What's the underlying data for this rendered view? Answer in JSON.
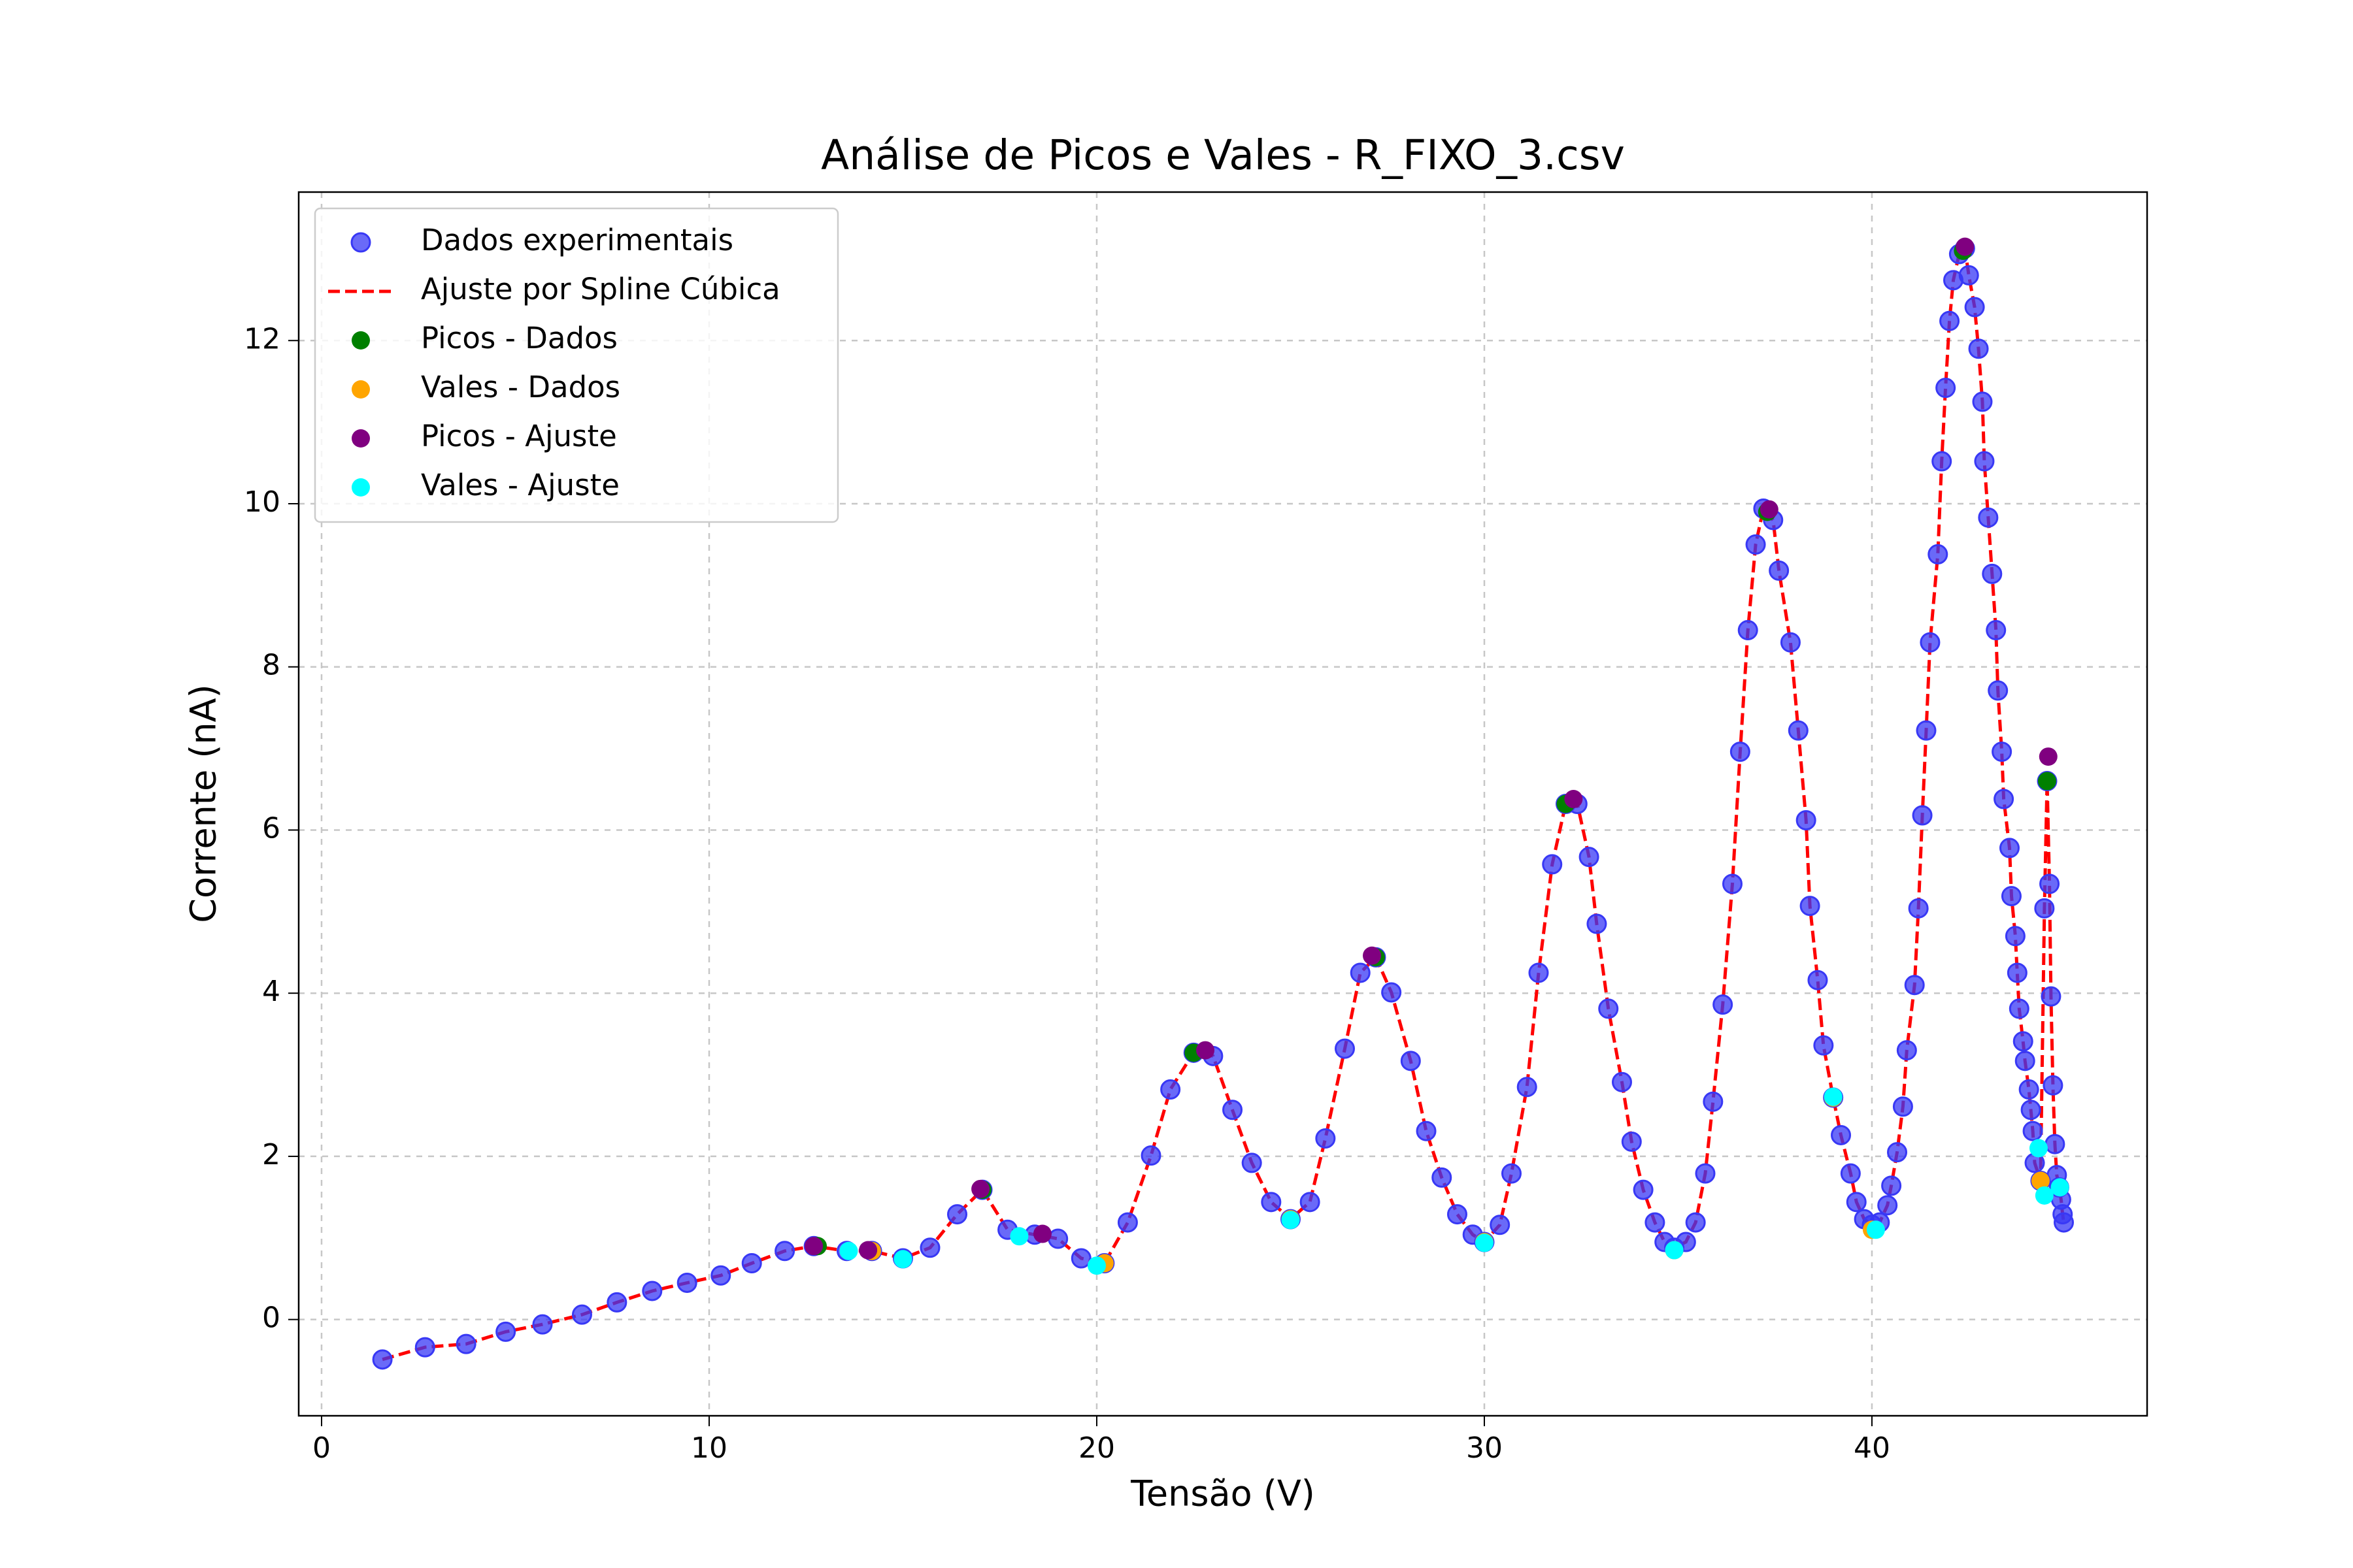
{
  "chart_data": {
    "type": "scatter",
    "title": "Análise de Picos e Vales - R_FIXO_3.csv",
    "xlabel": "Tensão (V)",
    "ylabel": "Corrente (nA)",
    "xlim": [
      -0.59,
      47.1
    ],
    "ylim": [
      -1.18,
      13.82
    ],
    "xticks": [
      0,
      10,
      20,
      30,
      40
    ],
    "yticks": [
      0,
      2,
      4,
      6,
      8,
      10,
      12
    ],
    "grid": true,
    "legend": "upper left",
    "series": [
      {
        "name": "Dados experimentais",
        "type": "scatter",
        "color": "#3838f5",
        "x": [
          1.57,
          2.67,
          3.73,
          4.75,
          5.7,
          6.72,
          7.62,
          8.53,
          9.43,
          10.3,
          11.1,
          11.95,
          12.7,
          13.55,
          14.2,
          15.0,
          15.7,
          16.4,
          17.05,
          17.7,
          18.4,
          19.0,
          19.6,
          20.2,
          20.8,
          21.4,
          21.9,
          22.5,
          23.0,
          23.5,
          24.0,
          24.5,
          25.0,
          25.5,
          25.9,
          26.4,
          26.8,
          27.2,
          27.6,
          28.1,
          28.5,
          28.9,
          29.3,
          29.7,
          30.0,
          30.4,
          30.7,
          31.1,
          31.4,
          31.75,
          32.1,
          32.4,
          32.7,
          32.9,
          33.2,
          33.55,
          33.8,
          34.1,
          34.4,
          34.65,
          34.9,
          35.2,
          35.45,
          35.7,
          35.9,
          36.15,
          36.4,
          36.6,
          36.8,
          37.0,
          37.2,
          37.45,
          37.6,
          37.9,
          38.1,
          38.3,
          38.4,
          38.6,
          38.75,
          39.0,
          39.2,
          39.45,
          39.6,
          39.8,
          40.0,
          40.2,
          40.4,
          40.5,
          40.65,
          40.8,
          40.9,
          41.1,
          41.2,
          41.3,
          41.4,
          41.5,
          41.7,
          41.8,
          41.9,
          42.0,
          42.1,
          42.25,
          42.4,
          42.5,
          42.65,
          42.75,
          42.85,
          42.9,
          43.0,
          43.1,
          43.2,
          43.25,
          43.35,
          43.4,
          43.55,
          43.6,
          43.7,
          43.75,
          43.8,
          43.9,
          43.95,
          44.05,
          44.1,
          44.15,
          44.2,
          44.35,
          44.45,
          44.52,
          44.58,
          44.62,
          44.67,
          44.72,
          44.77,
          44.83,
          44.88,
          44.92,
          44.95
        ],
        "values": [
          -0.49,
          -0.34,
          -0.3,
          -0.15,
          -0.06,
          0.06,
          0.21,
          0.35,
          0.45,
          0.54,
          0.69,
          0.84,
          0.9,
          0.84,
          0.84,
          0.75,
          0.88,
          1.29,
          1.59,
          1.1,
          1.04,
          0.99,
          0.75,
          0.69,
          1.19,
          2.01,
          2.82,
          3.27,
          3.23,
          2.57,
          1.92,
          1.44,
          1.23,
          1.44,
          2.22,
          3.32,
          4.25,
          4.44,
          4.01,
          3.17,
          2.31,
          1.74,
          1.29,
          1.04,
          0.95,
          1.16,
          1.79,
          2.85,
          4.25,
          5.58,
          6.32,
          6.32,
          5.67,
          4.85,
          3.81,
          2.91,
          2.18,
          1.59,
          1.19,
          0.95,
          0.88,
          0.95,
          1.19,
          1.79,
          2.67,
          3.86,
          5.34,
          6.96,
          8.45,
          9.5,
          9.94,
          9.8,
          9.18,
          8.3,
          7.22,
          6.12,
          5.07,
          4.16,
          3.36,
          2.72,
          2.26,
          1.79,
          1.44,
          1.23,
          1.16,
          1.19,
          1.4,
          1.64,
          2.05,
          2.61,
          3.3,
          4.1,
          5.04,
          6.18,
          7.22,
          8.3,
          9.38,
          10.52,
          11.42,
          12.24,
          12.74,
          13.06,
          13.13,
          12.8,
          12.41,
          11.9,
          11.25,
          10.52,
          9.83,
          9.14,
          8.45,
          7.71,
          6.96,
          6.38,
          5.78,
          5.19,
          4.7,
          4.25,
          3.81,
          3.41,
          3.17,
          2.82,
          2.57,
          2.31,
          1.92,
          1.7,
          5.04,
          6.6,
          5.34,
          3.96,
          2.87,
          2.15,
          1.77,
          1.62,
          1.47,
          1.29,
          1.19
        ]
      },
      {
        "name": "Ajuste por Spline Cúbica",
        "type": "line",
        "color": "#ff0000",
        "x": [
          1.57,
          2.67,
          3.73,
          4.75,
          5.7,
          6.72,
          7.62,
          8.53,
          9.43,
          10.3,
          11.1,
          11.95,
          12.7,
          13.55,
          14.2,
          15.0,
          15.7,
          16.4,
          17.05,
          17.7,
          18.4,
          19.0,
          19.6,
          20.2,
          20.8,
          21.4,
          21.9,
          22.5,
          23.0,
          23.5,
          24.0,
          24.5,
          25.0,
          25.5,
          25.9,
          26.4,
          26.8,
          27.2,
          27.6,
          28.1,
          28.5,
          28.9,
          29.3,
          29.7,
          30.0,
          30.4,
          30.7,
          31.1,
          31.4,
          31.75,
          32.1,
          32.4,
          32.7,
          32.9,
          33.2,
          33.55,
          33.8,
          34.1,
          34.4,
          34.65,
          34.9,
          35.2,
          35.45,
          35.7,
          35.9,
          36.15,
          36.4,
          36.6,
          36.8,
          37.0,
          37.2,
          37.45,
          37.6,
          37.9,
          38.1,
          38.3,
          38.4,
          38.6,
          38.75,
          39.0,
          39.2,
          39.45,
          39.6,
          39.8,
          40.0,
          40.2,
          40.4,
          40.5,
          40.65,
          40.8,
          40.9,
          41.1,
          41.2,
          41.3,
          41.4,
          41.5,
          41.7,
          41.8,
          41.9,
          42.0,
          42.1,
          42.25,
          42.4,
          42.5,
          42.65,
          42.75,
          42.85,
          42.9,
          43.0,
          43.1,
          43.2,
          43.25,
          43.35,
          43.4,
          43.55,
          43.6,
          43.7,
          43.75,
          43.8,
          43.9,
          43.95,
          44.05,
          44.1,
          44.15,
          44.2,
          44.35,
          44.45,
          44.52,
          44.58,
          44.62,
          44.67,
          44.72,
          44.77,
          44.83,
          44.88,
          44.92,
          44.95
        ],
        "values": [
          -0.49,
          -0.34,
          -0.3,
          -0.15,
          -0.06,
          0.06,
          0.21,
          0.35,
          0.45,
          0.54,
          0.69,
          0.84,
          0.9,
          0.84,
          0.84,
          0.75,
          0.88,
          1.29,
          1.59,
          1.1,
          1.04,
          0.99,
          0.75,
          0.69,
          1.19,
          2.01,
          2.82,
          3.27,
          3.23,
          2.57,
          1.92,
          1.44,
          1.23,
          1.44,
          2.22,
          3.32,
          4.25,
          4.44,
          4.01,
          3.17,
          2.31,
          1.74,
          1.29,
          1.04,
          0.95,
          1.16,
          1.79,
          2.85,
          4.25,
          5.58,
          6.32,
          6.32,
          5.67,
          4.85,
          3.81,
          2.91,
          2.18,
          1.59,
          1.19,
          0.95,
          0.88,
          0.95,
          1.19,
          1.79,
          2.67,
          3.86,
          5.34,
          6.96,
          8.45,
          9.5,
          9.94,
          9.8,
          9.18,
          8.3,
          7.22,
          6.12,
          5.07,
          4.16,
          3.36,
          2.72,
          2.26,
          1.79,
          1.44,
          1.23,
          1.16,
          1.19,
          1.4,
          1.64,
          2.05,
          2.61,
          3.3,
          4.1,
          5.04,
          6.18,
          7.22,
          8.3,
          9.38,
          10.52,
          11.42,
          12.24,
          12.74,
          13.06,
          13.13,
          12.8,
          12.41,
          11.9,
          11.25,
          10.52,
          9.83,
          9.14,
          8.45,
          7.71,
          6.96,
          6.38,
          5.78,
          5.19,
          4.7,
          4.25,
          3.81,
          3.41,
          3.17,
          2.82,
          2.57,
          2.31,
          1.92,
          1.7,
          5.04,
          6.6,
          5.34,
          3.96,
          2.87,
          2.15,
          1.77,
          1.62,
          1.47,
          1.29,
          1.19
        ]
      },
      {
        "name": "Picos - Dados",
        "type": "scatter",
        "color": "#008000",
        "x": [
          12.8,
          17.05,
          22.5,
          27.2,
          32.1,
          37.3,
          42.35,
          44.52
        ],
        "values": [
          0.9,
          1.59,
          3.27,
          4.44,
          6.32,
          9.9,
          13.1,
          6.6
        ]
      },
      {
        "name": "Vales - Dados",
        "type": "scatter",
        "color": "#ffa500",
        "x": [
          14.2,
          20.2,
          25.0,
          30.0,
          34.9,
          39.0,
          40.0,
          44.35
        ],
        "values": [
          0.84,
          0.69,
          1.23,
          0.95,
          0.85,
          2.72,
          1.1,
          1.7
        ]
      },
      {
        "name": "Picos - Ajuste",
        "type": "scatter",
        "color": "#800080",
        "x": [
          12.7,
          14.1,
          17.0,
          18.6,
          22.8,
          27.1,
          32.3,
          37.35,
          42.4,
          44.55
        ],
        "values": [
          0.9,
          0.85,
          1.6,
          1.05,
          3.3,
          4.46,
          6.38,
          9.93,
          13.15,
          6.9
        ]
      },
      {
        "name": "Vales - Ajuste",
        "type": "scatter",
        "color": "#00ffff",
        "x": [
          13.6,
          15.0,
          18.0,
          20.0,
          25.0,
          30.0,
          34.9,
          39.0,
          40.1,
          44.3,
          44.45,
          44.85
        ],
        "values": [
          0.84,
          0.74,
          1.02,
          0.66,
          1.22,
          0.94,
          0.85,
          2.73,
          1.1,
          2.1,
          1.52,
          1.62
        ]
      }
    ]
  }
}
